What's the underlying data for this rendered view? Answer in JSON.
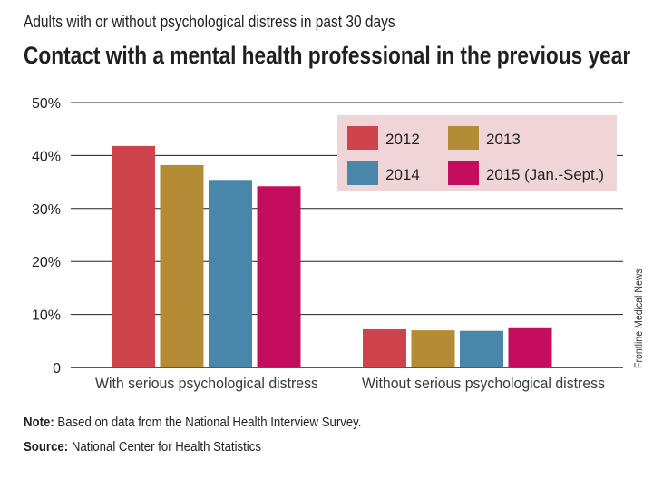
{
  "subtitle": "Adults with or without psychological distress in past 30 days",
  "title": "Contact with a mental health professional in the previous year",
  "note_label": "Note:",
  "note_text": " Based on data from the National Health Interview Survey.",
  "source_label": "Source:",
  "source_text": " National Center for Health Statistics",
  "credit": "Frontline Medical News",
  "colors": {
    "2012": "#cf444a",
    "2013": "#b48c35",
    "2014": "#4886aa",
    "2015": "#c50d5d",
    "legend_bg": "#f0d5d8",
    "grid": "#231f20"
  },
  "chart_data": {
    "type": "bar",
    "title": "Contact with a mental health professional in the previous year",
    "categories": [
      "With serious psychological distress",
      "Without serious psychological distress"
    ],
    "series": [
      {
        "name": "2012",
        "values": [
          41.8,
          7.2
        ]
      },
      {
        "name": "2013",
        "values": [
          38.2,
          7.0
        ]
      },
      {
        "name": "2014",
        "values": [
          35.4,
          6.9
        ]
      },
      {
        "name": "2015 (Jan.-Sept.)",
        "values": [
          34.2,
          7.4
        ]
      }
    ],
    "ylim": [
      0,
      50
    ],
    "yticks": [
      0,
      10,
      20,
      30,
      40,
      50
    ],
    "ytick_labels": [
      "0",
      "10%",
      "20%",
      "30%",
      "40%",
      "50%"
    ],
    "grid": true,
    "legend": "top-right"
  }
}
